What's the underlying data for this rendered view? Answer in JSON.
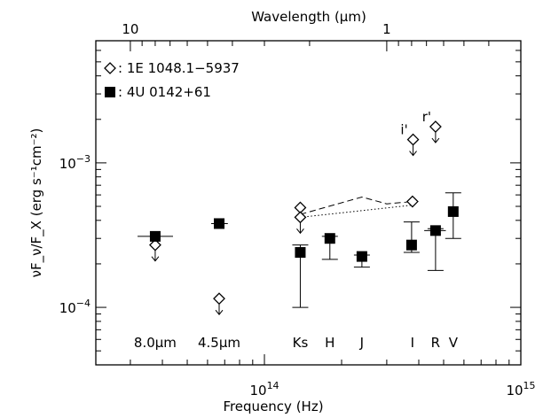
{
  "chart_data": {
    "type": "scatter",
    "title": "",
    "xlabel": "Frequency (Hz)",
    "ylabel": "νF_ν/F_X (erg s⁻¹cm⁻²)",
    "top_axis_label": "Wavelength (μm)",
    "x_scale": "log",
    "y_scale": "log",
    "xlim": [
      22000000000000,
      1000000000000000
    ],
    "ylim": [
      4e-05,
      0.007
    ],
    "x_tick_labels": [
      {
        "value": 100000000000000,
        "base": "10",
        "exp": "14"
      },
      {
        "value": 1000000000000000,
        "base": "10",
        "exp": "15"
      }
    ],
    "y_tick_labels": [
      {
        "value": 0.0001,
        "base": "10",
        "exp": "−4"
      },
      {
        "value": 0.001,
        "base": "10",
        "exp": "−3"
      }
    ],
    "top_tick_labels": [
      {
        "wavelength_um": 10,
        "label": "10"
      },
      {
        "wavelength_um": 1,
        "label": "1"
      }
    ],
    "legend": {
      "placement": "top-left",
      "entries": [
        {
          "marker": "open-diamond",
          "label": ": 1E 1048.1−5937"
        },
        {
          "marker": "filled-square",
          "label": ": 4U 0142+61"
        }
      ]
    },
    "series": [
      {
        "name": "1E 1048.1−5937",
        "marker": "open-diamond",
        "points": [
          {
            "x": 37500000000000,
            "y": 0.00027,
            "upper_limit": true
          },
          {
            "x": 66600000000000,
            "y": 0.000115,
            "upper_limit": true
          },
          {
            "x": 138000000000000,
            "y": 0.00049
          },
          {
            "x": 138000000000000,
            "y": 0.00042,
            "upper_limit": true
          },
          {
            "x": 378000000000000,
            "y": 0.00054
          },
          {
            "x": 380000000000000,
            "y": 0.00145,
            "upper_limit": true
          },
          {
            "x": 465000000000000,
            "y": 0.00178,
            "upper_limit": true
          }
        ]
      },
      {
        "name": "4U 0142+61",
        "marker": "filled-square",
        "points": [
          {
            "x": 37500000000000,
            "y": 0.00031,
            "x_err": [
              32000000000000,
              44000000000000
            ]
          },
          {
            "x": 66600000000000,
            "y": 0.00038,
            "x_err": [
              62000000000000,
              72000000000000
            ]
          },
          {
            "x": 138000000000000,
            "y": 0.00024,
            "y_err": [
              0.0001,
              0.00027
            ]
          },
          {
            "x": 180000000000000,
            "y": 0.0003,
            "y_err": [
              0.000215,
              0.00031
            ],
            "x_err": [
              172000000000000,
              188000000000000
            ]
          },
          {
            "x": 240000000000000,
            "y": 0.000225,
            "y_err": [
              0.00019,
              0.00023
            ]
          },
          {
            "x": 375000000000000,
            "y": 0.00027,
            "y_err": [
              0.00024,
              0.00039
            ]
          },
          {
            "x": 465000000000000,
            "y": 0.00034,
            "y_err": [
              0.00018,
              0.00035
            ],
            "x_err": [
              420000000000000,
              510000000000000
            ]
          },
          {
            "x": 545000000000000,
            "y": 0.00046,
            "y_err": [
              0.0003,
              0.00062
            ]
          }
        ]
      }
    ],
    "curves": [
      {
        "style": "dashed",
        "points": [
          [
            138000000000000,
            0.00044
          ],
          [
            240000000000000,
            0.00058
          ],
          [
            300000000000000,
            0.00052
          ],
          [
            378000000000000,
            0.00054
          ]
        ]
      },
      {
        "style": "dotted",
        "points": [
          [
            138000000000000,
            0.00042
          ],
          [
            378000000000000,
            0.00051
          ]
        ]
      }
    ],
    "band_labels": [
      {
        "label": "8.0μm",
        "x": 37500000000000
      },
      {
        "label": "4.5μm",
        "x": 66600000000000
      },
      {
        "label": "Ks",
        "x": 138000000000000
      },
      {
        "label": "H",
        "x": 180000000000000
      },
      {
        "label": "J",
        "x": 240000000000000
      },
      {
        "label": "I",
        "x": 378000000000000
      },
      {
        "label": "R",
        "x": 465000000000000
      },
      {
        "label": "V",
        "x": 545000000000000
      }
    ],
    "point_labels": [
      {
        "label": "i'",
        "x": 380000000000000,
        "y": 0.00145
      },
      {
        "label": "r'",
        "x": 465000000000000,
        "y": 0.00178
      }
    ]
  }
}
